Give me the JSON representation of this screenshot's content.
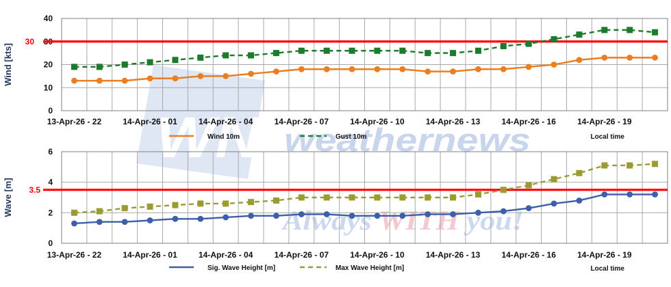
{
  "style": {
    "grid_color": "#a9a9a9",
    "border_color": "#7f7f7f",
    "text_color": "#111111",
    "background": "#ffffff"
  },
  "watermark": {
    "logo_text": "WN",
    "logo_letter_color": "#ffffff",
    "banner_color": "#dfe7f5",
    "brand_text": "weathernews",
    "brand_color": "#c9d5ec",
    "slogan_parts": [
      {
        "text": "Always ",
        "color": "#ccd8ef"
      },
      {
        "text": "WITH",
        "color": "#f5c9d0"
      },
      {
        "text": " you!",
        "color": "#ccd8ef"
      }
    ]
  },
  "chart_data": [
    {
      "type": "line",
      "title": "",
      "ylabel": "Wind [kts]",
      "xlabel": "Local time",
      "ylim": [
        0,
        40
      ],
      "yticks": [
        0,
        10,
        20,
        30,
        40
      ],
      "grid": true,
      "legend_position": "bottom",
      "threshold": {
        "value": 30,
        "label": "30",
        "color": "#ff0000"
      },
      "n_points": 24,
      "x_start_label": "13-Apr-26 - 22",
      "x_interval": "1 hour",
      "x_tick_labels": [
        "13-Apr-26 - 22",
        "14-Apr-26 - 01",
        "14-Apr-26 - 04",
        "14-Apr-26 - 07",
        "14-Apr-26 - 10",
        "14-Apr-26 - 13",
        "14-Apr-26 - 16",
        "14-Apr-26 - 19"
      ],
      "x_tick_cells": [
        0,
        3,
        6,
        9,
        12,
        15,
        18,
        21
      ],
      "series": [
        {
          "name": "Wind 10m",
          "color": "#ea7e20",
          "line": "solid",
          "marker": "circle",
          "values": [
            13,
            13,
            13,
            14,
            14,
            15,
            15,
            16,
            17,
            18,
            18,
            18,
            18,
            18,
            17,
            17,
            18,
            18,
            19,
            20,
            22,
            23,
            23,
            23
          ]
        },
        {
          "name": "Gust 10m",
          "color": "#1e7b2d",
          "line": "dashed",
          "marker": "square",
          "values": [
            19,
            19,
            20,
            21,
            22,
            23,
            24,
            24,
            25,
            26,
            26,
            26,
            26,
            26,
            25,
            25,
            26,
            28,
            29,
            31,
            33,
            35,
            35,
            34
          ]
        }
      ]
    },
    {
      "type": "line",
      "title": "",
      "ylabel": "Wave [m]",
      "xlabel": "Local time",
      "ylim": [
        0,
        6
      ],
      "yticks": [
        0,
        2,
        4,
        6
      ],
      "grid": true,
      "legend_position": "bottom",
      "threshold": {
        "value": 3.5,
        "label": "3.5",
        "color": "#ff0000"
      },
      "n_points": 24,
      "x_start_label": "13-Apr-26 - 22",
      "x_interval": "1 hour",
      "x_tick_labels": [
        "13-Apr-26 - 22",
        "14-Apr-26 - 01",
        "14-Apr-26 - 04",
        "14-Apr-26 - 07",
        "14-Apr-26 - 10",
        "14-Apr-26 - 13",
        "14-Apr-26 - 16",
        "14-Apr-26 - 19"
      ],
      "x_tick_cells": [
        0,
        3,
        6,
        9,
        12,
        15,
        18,
        21
      ],
      "series": [
        {
          "name": "Sig. Wave Height [m]",
          "color": "#3d5fa9",
          "line": "solid",
          "marker": "circle",
          "values": [
            1.3,
            1.4,
            1.4,
            1.5,
            1.6,
            1.6,
            1.7,
            1.8,
            1.8,
            1.9,
            1.9,
            1.8,
            1.8,
            1.8,
            1.9,
            1.9,
            2.0,
            2.1,
            2.3,
            2.6,
            2.8,
            3.2,
            3.2,
            3.2
          ]
        },
        {
          "name": "Max Wave Height [m]",
          "color": "#9b9b30",
          "line": "dashed",
          "marker": "square",
          "values": [
            2.0,
            2.1,
            2.3,
            2.4,
            2.5,
            2.6,
            2.6,
            2.7,
            2.8,
            3.0,
            3.0,
            3.0,
            3.0,
            3.0,
            3.0,
            3.0,
            3.2,
            3.5,
            3.8,
            4.2,
            4.6,
            5.1,
            5.1,
            5.2
          ]
        }
      ]
    }
  ]
}
